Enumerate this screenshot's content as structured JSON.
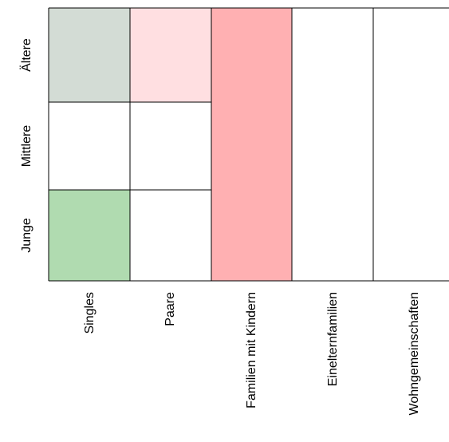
{
  "matrix": {
    "row_labels": [
      "Ältere",
      "Mittlere",
      "Junge"
    ],
    "column_labels": [
      "Singles",
      "Paare",
      "Familien mit Kindern",
      "Einelternfamilien",
      "Wohngemeinschaften"
    ],
    "highlighted_cells": [
      {
        "column": "Singles",
        "row": "Ältere",
        "color": "#d3dcd5"
      },
      {
        "column": "Singles",
        "row": "Junge",
        "color": "#b0dbb0"
      },
      {
        "column": "Paare",
        "row": "Ältere",
        "color": "#ffdfe1"
      },
      {
        "column": "Familien mit Kindern",
        "row": "Ältere",
        "color": "#ffb0b2"
      },
      {
        "column": "Familien mit Kindern",
        "row": "Mittlere",
        "color": "#ffb0b2"
      },
      {
        "column": "Familien mit Kindern",
        "row": "Junge",
        "color": "#ffb0b2"
      }
    ],
    "line_color": "#000000"
  }
}
